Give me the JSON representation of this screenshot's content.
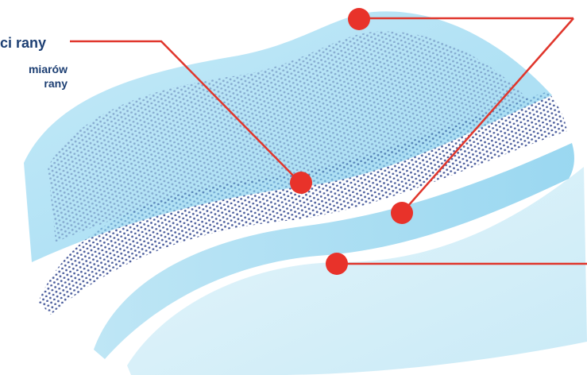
{
  "callout": {
    "title": "ci rany",
    "subtitle_line1": "miarów",
    "subtitle_line2": "rany"
  },
  "colors": {
    "marker": "#e8322a",
    "leader_line": "#e0362c",
    "label_text": "#1d3f73",
    "top_sheet": "#8fd3ef",
    "mesh_dots": "#2a3f8a",
    "base_sheet": "#bfe6f6"
  },
  "illustration": {
    "subject": "layered-wound-dressing",
    "layers": [
      "top-film-layer",
      "dotted-mesh-layer",
      "middle-gel-layer",
      "bottom-film-layer"
    ],
    "marker_count": 4
  }
}
